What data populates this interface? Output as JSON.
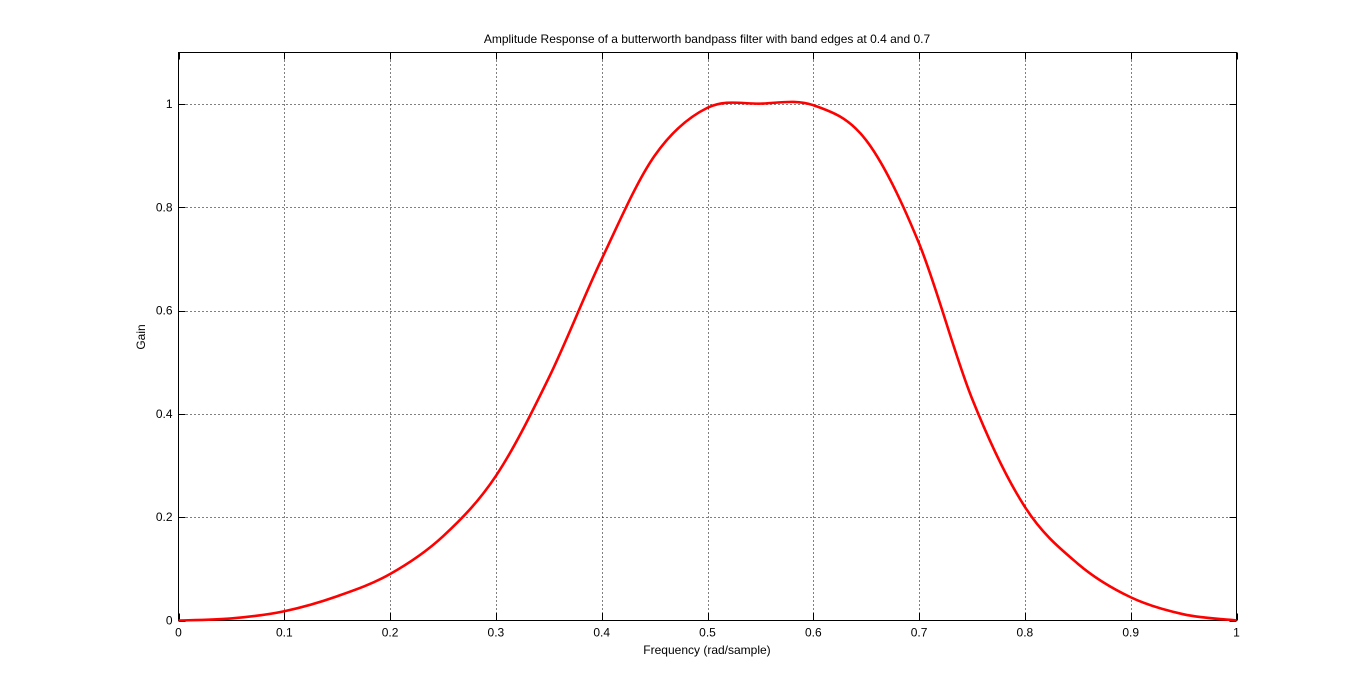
{
  "chart_data": {
    "type": "line",
    "title": "Amplitude Response of a butterworth bandpass filter with band edges at 0.4 and 0.7",
    "xlabel": "Frequency (rad/sample)",
    "ylabel": "Gain",
    "xlim": [
      0,
      1
    ],
    "ylim": [
      0,
      1.1
    ],
    "xticks": [
      0,
      0.1,
      0.2,
      0.3,
      0.4,
      0.5,
      0.6,
      0.7,
      0.8,
      0.9,
      1
    ],
    "xtick_labels": [
      "0",
      "0.1",
      "0.2",
      "0.3",
      "0.4",
      "0.5",
      "0.6",
      "0.7",
      "0.8",
      "0.9",
      "1"
    ],
    "yticks": [
      0,
      0.2,
      0.4,
      0.6,
      0.8,
      1
    ],
    "ytick_labels": [
      "0",
      "0.2",
      "0.4",
      "0.6",
      "0.8",
      "1"
    ],
    "grid": true,
    "series": [
      {
        "color": "#ff0000",
        "x": [
          0,
          0.05,
          0.1,
          0.15,
          0.2,
          0.25,
          0.3,
          0.35,
          0.4,
          0.45,
          0.5,
          0.55,
          0.6,
          0.65,
          0.7,
          0.75,
          0.8,
          0.85,
          0.9,
          0.95,
          1.0
        ],
        "y": [
          0,
          0.004,
          0.018,
          0.047,
          0.09,
          0.163,
          0.28,
          0.47,
          0.7,
          0.9,
          0.993,
          1.001,
          0.998,
          0.93,
          0.73,
          0.43,
          0.22,
          0.11,
          0.045,
          0.012,
          0
        ]
      }
    ]
  }
}
